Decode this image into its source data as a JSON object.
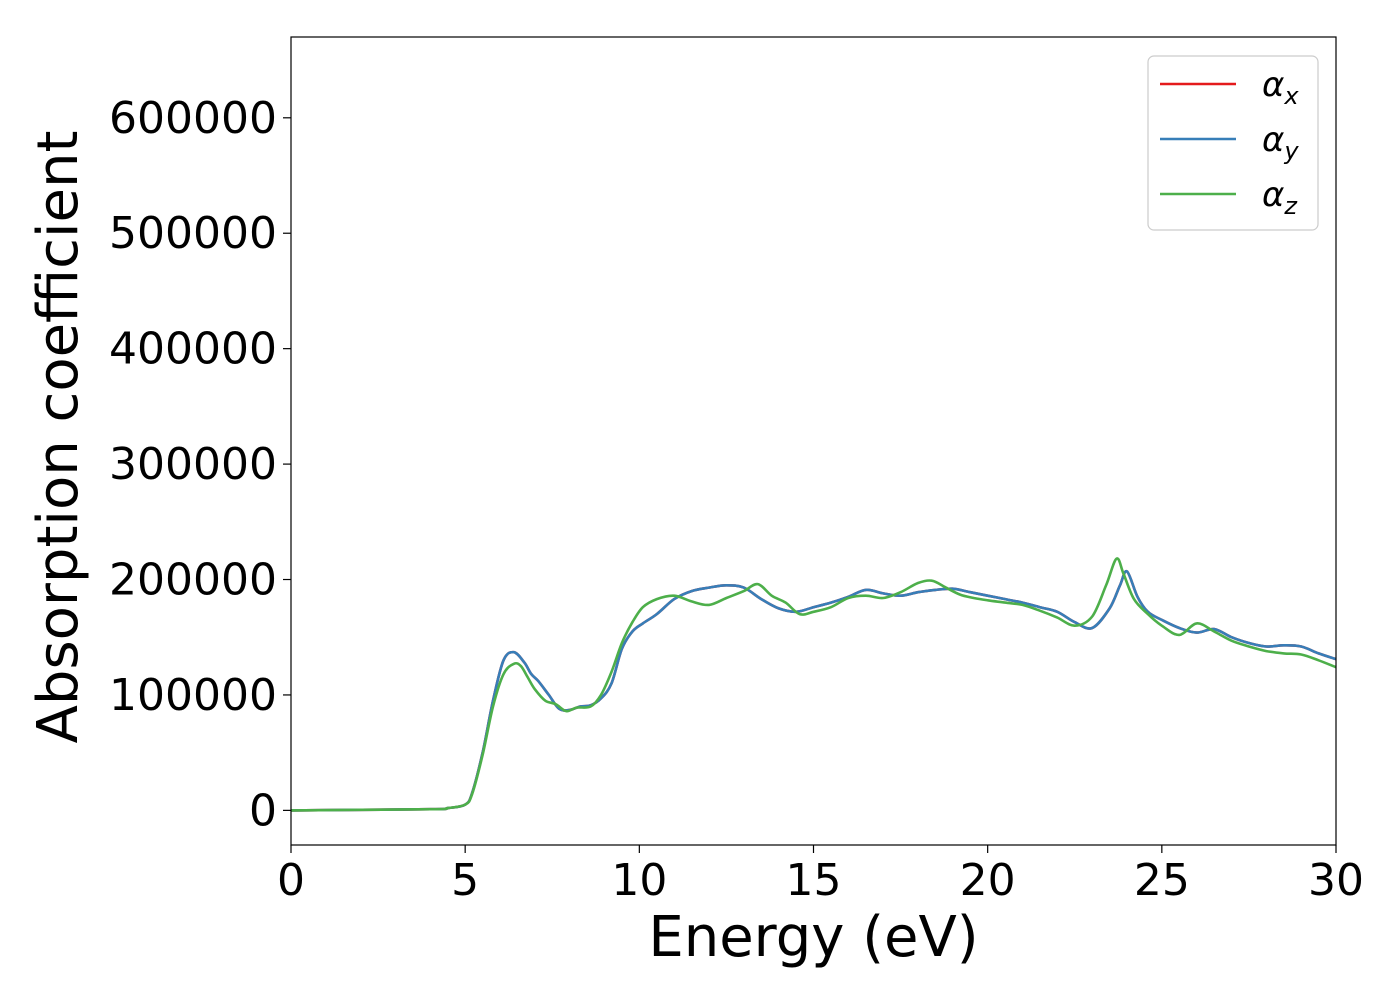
{
  "chart_data": {
    "type": "line",
    "title": "",
    "xlabel": "Energy (eV)",
    "ylabel": "Absorption coefficient",
    "xlim": [
      0,
      30
    ],
    "ylim": [
      -30000,
      670000
    ],
    "x_ticks": [
      0,
      5,
      10,
      15,
      20,
      25,
      30
    ],
    "y_ticks": [
      0,
      100000,
      200000,
      300000,
      400000,
      500000,
      600000
    ],
    "grid": false,
    "legend_position": "top-right",
    "series": [
      {
        "name": "αx",
        "base": "α",
        "sub": "x",
        "color": "#e41a1c",
        "x": [
          0,
          4,
          4.5,
          5,
          5.2,
          5.5,
          5.8,
          6.1,
          6.4,
          6.7,
          6.9,
          7.1,
          7.4,
          7.7,
          8.0,
          8.3,
          8.6,
          8.9,
          9.2,
          9.5,
          9.8,
          10.1,
          10.5,
          11.0,
          11.5,
          12.0,
          12.5,
          13.0,
          13.5,
          14.0,
          14.5,
          15.0,
          15.5,
          16.0,
          16.5,
          17.0,
          17.5,
          18.0,
          18.5,
          19.0,
          19.5,
          20.0,
          20.5,
          21.0,
          21.5,
          22.0,
          22.5,
          23.0,
          23.5,
          23.8,
          24.0,
          24.3,
          24.6,
          25.0,
          25.5,
          26.0,
          26.5,
          27.0,
          27.5,
          28.0,
          28.5,
          29.0,
          29.5,
          30.0
        ],
        "values": [
          0,
          1000,
          2000,
          5000,
          15000,
          50000,
          95000,
          130000,
          137000,
          128000,
          118000,
          112000,
          100000,
          88000,
          87000,
          90000,
          91000,
          97000,
          110000,
          140000,
          155000,
          162000,
          170000,
          183000,
          190000,
          193000,
          195000,
          193000,
          183000,
          175000,
          172000,
          176000,
          180000,
          185000,
          191000,
          188000,
          186000,
          189000,
          191000,
          192000,
          189000,
          186000,
          183000,
          180000,
          176000,
          172000,
          163000,
          158000,
          175000,
          195000,
          207000,
          185000,
          172000,
          165000,
          158000,
          154000,
          157000,
          150000,
          145000,
          142000,
          143000,
          142000,
          136000,
          131000
        ]
      },
      {
        "name": "αy",
        "base": "α",
        "sub": "y",
        "color": "#377eb8",
        "x": [
          0,
          4,
          4.5,
          5,
          5.2,
          5.5,
          5.8,
          6.1,
          6.4,
          6.7,
          6.9,
          7.1,
          7.4,
          7.7,
          8.0,
          8.3,
          8.6,
          8.9,
          9.2,
          9.5,
          9.8,
          10.1,
          10.5,
          11.0,
          11.5,
          12.0,
          12.5,
          13.0,
          13.5,
          14.0,
          14.5,
          15.0,
          15.5,
          16.0,
          16.5,
          17.0,
          17.5,
          18.0,
          18.5,
          19.0,
          19.5,
          20.0,
          20.5,
          21.0,
          21.5,
          22.0,
          22.5,
          23.0,
          23.5,
          23.8,
          24.0,
          24.3,
          24.6,
          25.0,
          25.5,
          26.0,
          26.5,
          27.0,
          27.5,
          28.0,
          28.5,
          29.0,
          29.5,
          30.0
        ],
        "values": [
          0,
          1000,
          2000,
          5000,
          15000,
          50000,
          95000,
          130000,
          137000,
          128000,
          118000,
          112000,
          100000,
          88000,
          87000,
          90000,
          91000,
          97000,
          110000,
          140000,
          155000,
          162000,
          170000,
          183000,
          190000,
          193000,
          195000,
          193000,
          183000,
          175000,
          172000,
          176000,
          180000,
          185000,
          191000,
          188000,
          186000,
          189000,
          191000,
          192000,
          189000,
          186000,
          183000,
          180000,
          176000,
          172000,
          163000,
          158000,
          175000,
          195000,
          207000,
          185000,
          172000,
          165000,
          158000,
          154000,
          157000,
          150000,
          145000,
          142000,
          143000,
          142000,
          136000,
          131000
        ]
      },
      {
        "name": "αz",
        "base": "α",
        "sub": "z",
        "color": "#4daf4a",
        "x": [
          0,
          4,
          4.5,
          5,
          5.2,
          5.5,
          5.8,
          6.1,
          6.4,
          6.6,
          6.8,
          7.0,
          7.3,
          7.6,
          7.9,
          8.2,
          8.6,
          8.9,
          9.2,
          9.5,
          9.8,
          10.1,
          10.5,
          11.0,
          11.5,
          12.0,
          12.5,
          13.0,
          13.4,
          13.8,
          14.2,
          14.6,
          15.0,
          15.5,
          16.0,
          16.5,
          17.0,
          17.5,
          18.0,
          18.4,
          18.8,
          19.2,
          19.6,
          20.0,
          20.5,
          21.0,
          21.5,
          22.0,
          22.5,
          23.0,
          23.4,
          23.7,
          23.9,
          24.2,
          24.6,
          25.0,
          25.5,
          26.0,
          26.5,
          27.0,
          27.5,
          28.0,
          28.5,
          29.0,
          29.5,
          30.0
        ],
        "values": [
          0,
          1000,
          2000,
          5000,
          14000,
          48000,
          90000,
          118000,
          127000,
          125000,
          115000,
          105000,
          95000,
          92000,
          86000,
          89000,
          90000,
          100000,
          120000,
          145000,
          163000,
          176000,
          183000,
          186000,
          181000,
          178000,
          184000,
          190000,
          196000,
          186000,
          180000,
          170000,
          172000,
          176000,
          184000,
          186000,
          184000,
          189000,
          197000,
          199000,
          193000,
          187000,
          184000,
          182000,
          180000,
          178000,
          173000,
          167000,
          160000,
          168000,
          195000,
          218000,
          205000,
          183000,
          170000,
          160000,
          152000,
          162000,
          155000,
          147000,
          142000,
          138000,
          136000,
          135000,
          130000,
          124000
        ]
      }
    ]
  }
}
